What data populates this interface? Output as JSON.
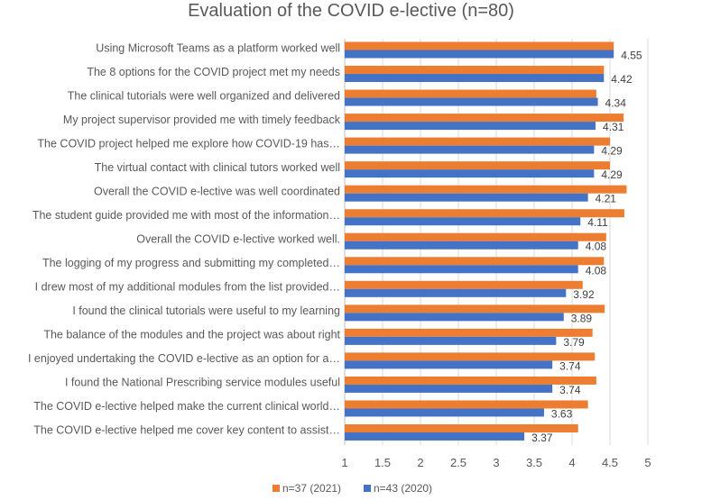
{
  "chart_data": {
    "type": "bar",
    "orientation": "horizontal",
    "title": "Evaluation of the COVID e-lective (n=80)",
    "xlabel": "",
    "ylabel": "",
    "xlim": [
      1,
      5
    ],
    "xticks": [
      "1",
      "1.5",
      "2",
      "2.5",
      "3",
      "3.5",
      "4",
      "4.5",
      "5"
    ],
    "tick_values": [
      1,
      1.5,
      2,
      2.5,
      3,
      3.5,
      4,
      4.5,
      5
    ],
    "grid": true,
    "legend_position": "bottom",
    "categories": [
      "Using Microsoft Teams as a platform worked well",
      "The 8 options for the COVID project met my needs",
      "The clinical tutorials were well organized and delivered",
      "My project supervisor provided me with timely feedback",
      "The COVID project helped me explore how COVID-19 has…",
      "The virtual contact with clinical tutors worked well",
      "Overall the COVID e-lective was well coordinated",
      "The student guide provided me with most of the information…",
      "Overall the COVID e-lective worked well.",
      "The logging of my progress and submitting my completed…",
      "I drew most of my additional modules from the list provided…",
      "I found the clinical tutorials were useful to my learning",
      "The balance of the modules and the project was about right",
      "I enjoyed undertaking the COVID e-lective as an option for a…",
      "I found the National Prescribing service modules useful",
      "The COVID e-lective helped make the current clinical world…",
      "The COVID e-lective helped me cover key content to assist…"
    ],
    "series": [
      {
        "name": "n=37 (2021)",
        "color": "#ED7D31",
        "values": [
          4.55,
          4.42,
          4.32,
          4.68,
          4.5,
          4.5,
          4.72,
          4.69,
          4.45,
          4.42,
          4.14,
          4.43,
          4.27,
          4.3,
          4.32,
          4.21,
          4.08
        ]
      },
      {
        "name": "n=43 (2020)",
        "color": "#4472C4",
        "labels": [
          "4.55",
          "4.42",
          "4.34",
          "4.31",
          "4.29",
          "4.29",
          "4.21",
          "4.11",
          "4.08",
          "4.08",
          "3.92",
          "3.89",
          "3.79",
          "3.74",
          "3.74",
          "3.63",
          "3.37"
        ],
        "values": [
          4.55,
          4.42,
          4.34,
          4.31,
          4.29,
          4.29,
          4.21,
          4.11,
          4.08,
          4.08,
          3.92,
          3.89,
          3.79,
          3.74,
          3.74,
          3.63,
          3.37
        ]
      }
    ]
  },
  "colors": {
    "gridline": "#D9D9D9",
    "axis": "#BFBFBF",
    "text": "#595959",
    "title": "#595959"
  }
}
